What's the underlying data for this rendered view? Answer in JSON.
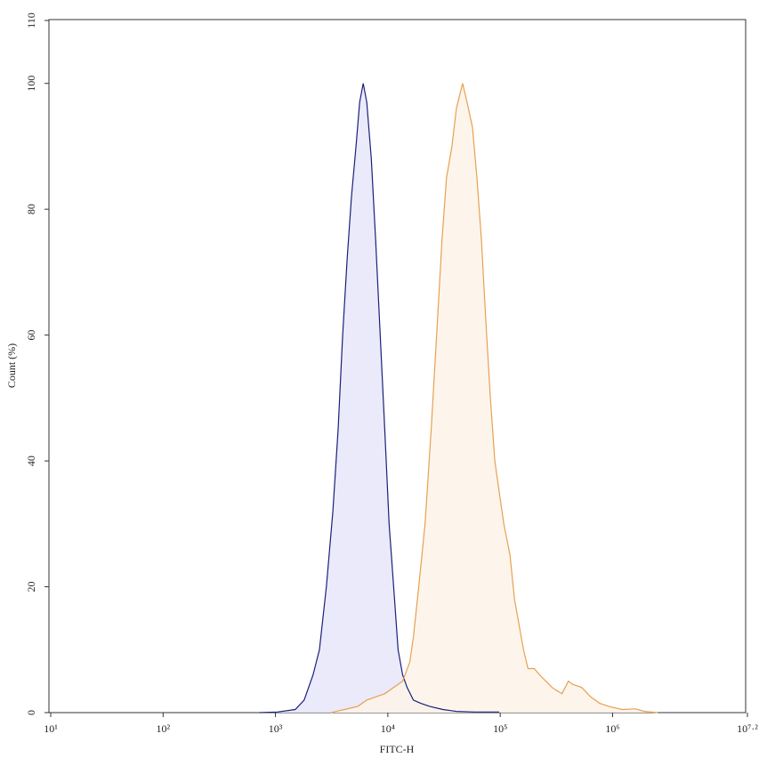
{
  "chart_data": {
    "type": "histogram-overlay",
    "x_label": "FITC-H",
    "y_label": "Count (%)",
    "xscale": "log",
    "xlim": [
      10,
      15848932
    ],
    "xticks": [
      {
        "value": 10,
        "label": "10¹"
      },
      {
        "value": 100,
        "label": "10²"
      },
      {
        "value": 1000,
        "label": "10³"
      },
      {
        "value": 10000,
        "label": "10⁴"
      },
      {
        "value": 100000,
        "label": "10⁵"
      },
      {
        "value": 1000000,
        "label": "10⁶"
      },
      {
        "value": 15848932,
        "label": "10⁷·²"
      }
    ],
    "ylim": [
      0,
      110
    ],
    "yticks": [
      0,
      20,
      40,
      60,
      80,
      100,
      110
    ],
    "series": [
      {
        "color": "#1c1f7a",
        "fill": "#e6e6fa",
        "x": [
          720,
          1040,
          1500,
          1800,
          2160,
          2460,
          2840,
          3240,
          3610,
          3960,
          4340,
          4750,
          5210,
          5610,
          6040,
          6500,
          7130,
          7800,
          8560,
          9380,
          10270,
          11260,
          12350,
          13530,
          14830,
          16870,
          19530,
          23480,
          30900,
          40740,
          58750,
          98150
        ],
        "values": [
          0,
          0.1,
          0.5,
          2,
          6,
          10,
          20,
          32,
          45,
          60,
          72,
          82,
          90,
          97,
          100,
          97,
          88,
          75,
          60,
          45,
          30,
          20,
          10,
          6,
          4,
          2,
          1.5,
          1,
          0.5,
          0.2,
          0.1,
          0.1
        ]
      },
      {
        "color": "#e8a050",
        "fill": "#fdf3e8",
        "x": [
          3120,
          4110,
          5410,
          6500,
          7800,
          9380,
          11260,
          13530,
          15670,
          16870,
          18840,
          21420,
          24330,
          27170,
          30330,
          33250,
          37150,
          40740,
          46240,
          50700,
          56620,
          62080,
          68070,
          74640,
          81700,
          89580,
          98150,
          107700,
          122400,
          134000,
          146900,
          161100,
          176600,
          200900,
          224300,
          254700,
          289700,
          317700,
          354800,
          403600,
          441600,
          530900,
          638300,
          765600,
          920500,
          1213000,
          1596000,
          1919000,
          2524000
        ],
        "values": [
          0,
          0.5,
          1,
          2,
          2.5,
          3,
          4,
          5,
          8,
          12,
          20,
          30,
          45,
          60,
          75,
          85,
          90,
          96,
          100,
          97,
          93,
          85,
          75,
          62,
          50,
          40,
          35,
          30,
          25,
          18,
          14,
          10,
          7,
          7,
          6,
          5,
          4,
          3.5,
          3,
          5,
          4.5,
          4,
          2.5,
          1.5,
          1,
          0.5,
          0.6,
          0.2,
          0
        ]
      }
    ]
  }
}
